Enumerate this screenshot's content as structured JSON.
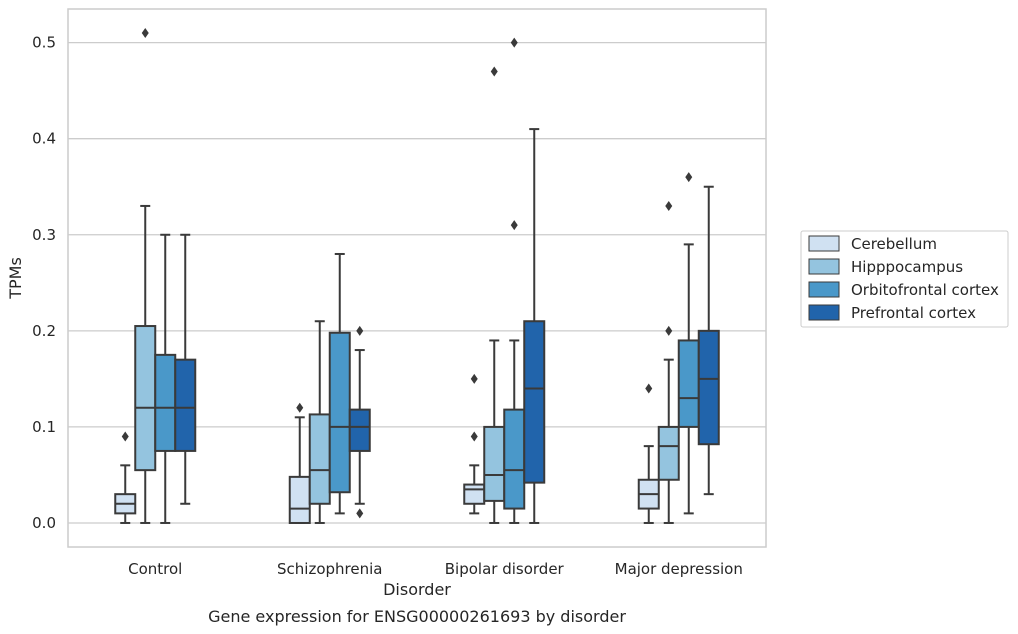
{
  "chart_data": {
    "type": "box",
    "title": "Gene expression for ENSG00000261693 by disorder",
    "xlabel": "Disorder",
    "ylabel": "TPMs",
    "ylim": [
      -0.025,
      0.535
    ],
    "yticks": [
      0.0,
      0.1,
      0.2,
      0.3,
      0.4,
      0.5
    ],
    "ytick_labels": [
      "0.0",
      "0.1",
      "0.2",
      "0.3",
      "0.4",
      "0.5"
    ],
    "grid": "horizontal",
    "legend_position": "right",
    "categories": [
      "Control",
      "Schizophrenia",
      "Bipolar disorder",
      "Major depression"
    ],
    "series": [
      {
        "name": "Cerebellum",
        "color": "#d0e1f2",
        "boxes": [
          {
            "whislo": 0.0,
            "q1": 0.01,
            "med": 0.02,
            "q3": 0.03,
            "whishi": 0.06,
            "fliers": [
              0.09
            ]
          },
          {
            "whislo": 0.0,
            "q1": 0.0,
            "med": 0.015,
            "q3": 0.048,
            "whishi": 0.11,
            "fliers": [
              0.12
            ]
          },
          {
            "whislo": 0.01,
            "q1": 0.02,
            "med": 0.035,
            "q3": 0.04,
            "whishi": 0.06,
            "fliers": [
              0.09,
              0.15
            ]
          },
          {
            "whislo": 0.0,
            "q1": 0.015,
            "med": 0.03,
            "q3": 0.045,
            "whishi": 0.08,
            "fliers": [
              0.14
            ]
          }
        ]
      },
      {
        "name": "Hipppocampus",
        "color": "#94c4df",
        "boxes": [
          {
            "whislo": 0.0,
            "q1": 0.055,
            "med": 0.12,
            "q3": 0.205,
            "whishi": 0.33,
            "fliers": [
              0.51
            ]
          },
          {
            "whislo": 0.0,
            "q1": 0.02,
            "med": 0.055,
            "q3": 0.113,
            "whishi": 0.21,
            "fliers": []
          },
          {
            "whislo": 0.0,
            "q1": 0.023,
            "med": 0.05,
            "q3": 0.1,
            "whishi": 0.19,
            "fliers": [
              0.47
            ]
          },
          {
            "whislo": 0.0,
            "q1": 0.045,
            "med": 0.08,
            "q3": 0.1,
            "whishi": 0.17,
            "fliers": [
              0.2,
              0.33
            ]
          }
        ]
      },
      {
        "name": "Orbitofrontal cortex",
        "color": "#4a98c9",
        "boxes": [
          {
            "whislo": 0.0,
            "q1": 0.075,
            "med": 0.12,
            "q3": 0.175,
            "whishi": 0.3,
            "fliers": []
          },
          {
            "whislo": 0.01,
            "q1": 0.032,
            "med": 0.1,
            "q3": 0.198,
            "whishi": 0.28,
            "fliers": []
          },
          {
            "whislo": 0.0,
            "q1": 0.015,
            "med": 0.055,
            "q3": 0.118,
            "whishi": 0.19,
            "fliers": [
              0.31,
              0.5
            ]
          },
          {
            "whislo": 0.01,
            "q1": 0.1,
            "med": 0.13,
            "q3": 0.19,
            "whishi": 0.29,
            "fliers": [
              0.36
            ]
          }
        ]
      },
      {
        "name": "Prefrontal cortex",
        "color": "#2164ab",
        "boxes": [
          {
            "whislo": 0.02,
            "q1": 0.075,
            "med": 0.12,
            "q3": 0.17,
            "whishi": 0.3,
            "fliers": []
          },
          {
            "whislo": 0.02,
            "q1": 0.075,
            "med": 0.1,
            "q3": 0.118,
            "whishi": 0.18,
            "fliers": [
              0.01,
              0.2
            ]
          },
          {
            "whislo": 0.0,
            "q1": 0.042,
            "med": 0.14,
            "q3": 0.21,
            "whishi": 0.41,
            "fliers": []
          },
          {
            "whislo": 0.03,
            "q1": 0.082,
            "med": 0.15,
            "q3": 0.2,
            "whishi": 0.35,
            "fliers": []
          }
        ]
      }
    ]
  }
}
